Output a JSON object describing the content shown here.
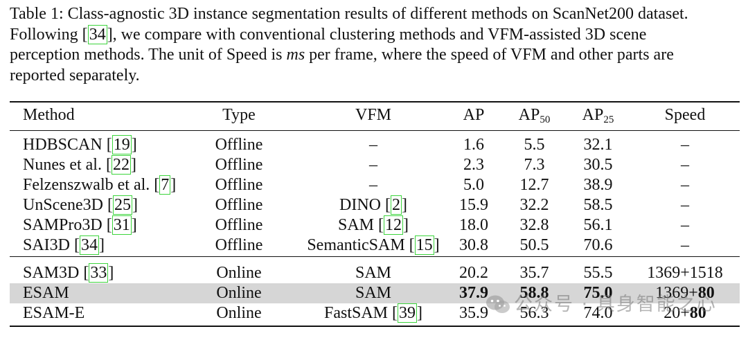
{
  "caption": {
    "line1": "Table 1: Class-agnostic 3D instance segmentation results of different methods on ScanNet200 dataset.",
    "line2_pre": "Following [",
    "line2_ref": "34",
    "line2_post": "], we compare with conventional clustering methods and VFM-assisted 3D scene",
    "line3_pre": "perception methods. The unit of Speed is ",
    "line3_em": "ms",
    "line3_post": " per frame, where the speed of VFM and other parts are",
    "line4": "reported separately."
  },
  "table": {
    "headers": {
      "method": "Method",
      "type": "Type",
      "vfm": "VFM",
      "ap": "AP",
      "ap50_base": "AP",
      "ap50_sub": "50",
      "ap25_base": "AP",
      "ap25_sub": "25",
      "speed": "Speed"
    },
    "rows": [
      {
        "method": "HDBSCAN ",
        "method_ref": "19",
        "type": "Offline",
        "vfm": "–",
        "vfm_ref": "",
        "ap": "1.6",
        "ap50": "5.5",
        "ap25": "32.1",
        "speed": "–",
        "speed_bold": ""
      },
      {
        "method": "Nunes et al. ",
        "method_ref": "22",
        "type": "Offline",
        "vfm": "–",
        "vfm_ref": "",
        "ap": "2.3",
        "ap50": "7.3",
        "ap25": "30.5",
        "speed": "–",
        "speed_bold": ""
      },
      {
        "method": "Felzenszwalb et al. ",
        "method_ref": "7",
        "type": "Offline",
        "vfm": "–",
        "vfm_ref": "",
        "ap": "5.0",
        "ap50": "12.7",
        "ap25": "38.9",
        "speed": "–",
        "speed_bold": ""
      },
      {
        "method": "UnScene3D ",
        "method_ref": "25",
        "type": "Offline",
        "vfm": "DINO ",
        "vfm_ref": "2",
        "ap": "15.9",
        "ap50": "32.2",
        "ap25": "58.5",
        "speed": "–",
        "speed_bold": ""
      },
      {
        "method": "SAMPro3D ",
        "method_ref": "31",
        "type": "Offline",
        "vfm": "SAM ",
        "vfm_ref": "12",
        "ap": "18.0",
        "ap50": "32.8",
        "ap25": "56.1",
        "speed": "–",
        "speed_bold": ""
      },
      {
        "method": "SAI3D ",
        "method_ref": "34",
        "type": "Offline",
        "vfm": "SemanticSAM ",
        "vfm_ref": "15",
        "ap": "30.8",
        "ap50": "50.5",
        "ap25": "70.6",
        "speed": "–",
        "speed_bold": ""
      },
      {
        "method": "SAM3D ",
        "method_ref": "33",
        "type": "Online",
        "vfm": "SAM",
        "vfm_ref": "",
        "ap": "20.2",
        "ap50": "35.7",
        "ap25": "55.5",
        "speed": "1369+1518",
        "speed_bold": ""
      },
      {
        "method": "ESAM",
        "method_ref": "",
        "type": "Online",
        "vfm": "SAM",
        "vfm_ref": "",
        "ap": "37.9",
        "ap50": "58.8",
        "ap25": "75.0",
        "speed": "1369+",
        "speed_bold": "80"
      },
      {
        "method": "ESAM-E",
        "method_ref": "",
        "type": "Online",
        "vfm": "FastSAM ",
        "vfm_ref": "39",
        "ap": "35.9",
        "ap50": "56.3",
        "ap25": "74.0",
        "speed": "20+",
        "speed_bold": "80"
      }
    ]
  },
  "watermark": {
    "text": "公众号 · 具身智能之心",
    "icon": "wechat-icon"
  }
}
